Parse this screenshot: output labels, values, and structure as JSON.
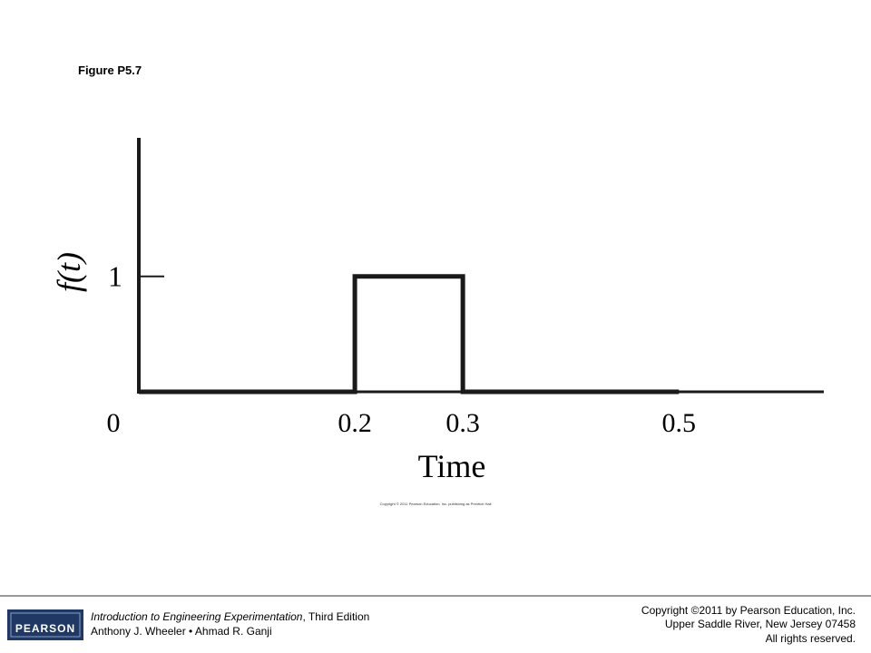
{
  "slide_title": "Figure P5.7",
  "chart_data": {
    "type": "line",
    "x": [
      0,
      0.2,
      0.2,
      0.3,
      0.3,
      0.5
    ],
    "values": [
      0,
      0,
      1,
      1,
      0,
      0
    ],
    "color": "#1a1a1a",
    "xlim": [
      0,
      0.63
    ],
    "xticks": [
      0,
      0.2,
      0.3,
      0.5
    ],
    "ylim": [
      0,
      2.2
    ],
    "yticks": [
      1
    ],
    "x_label": "Time",
    "y_label": "f(t)",
    "credit": "Copyright © 2011 Pearson Education, Inc. publishing as Prentice Hall"
  },
  "footer": {
    "logo": "PEARSON",
    "book_title": "Introduction to Engineering Experimentation",
    "edition": ", Third Edition",
    "authors": "Anthony J. Wheeler • Ahmad R. Ganji",
    "copyright": [
      "Copyright ©2011 by Pearson Education, Inc.",
      "Upper Saddle River, New Jersey 07458",
      "All rights reserved."
    ]
  }
}
